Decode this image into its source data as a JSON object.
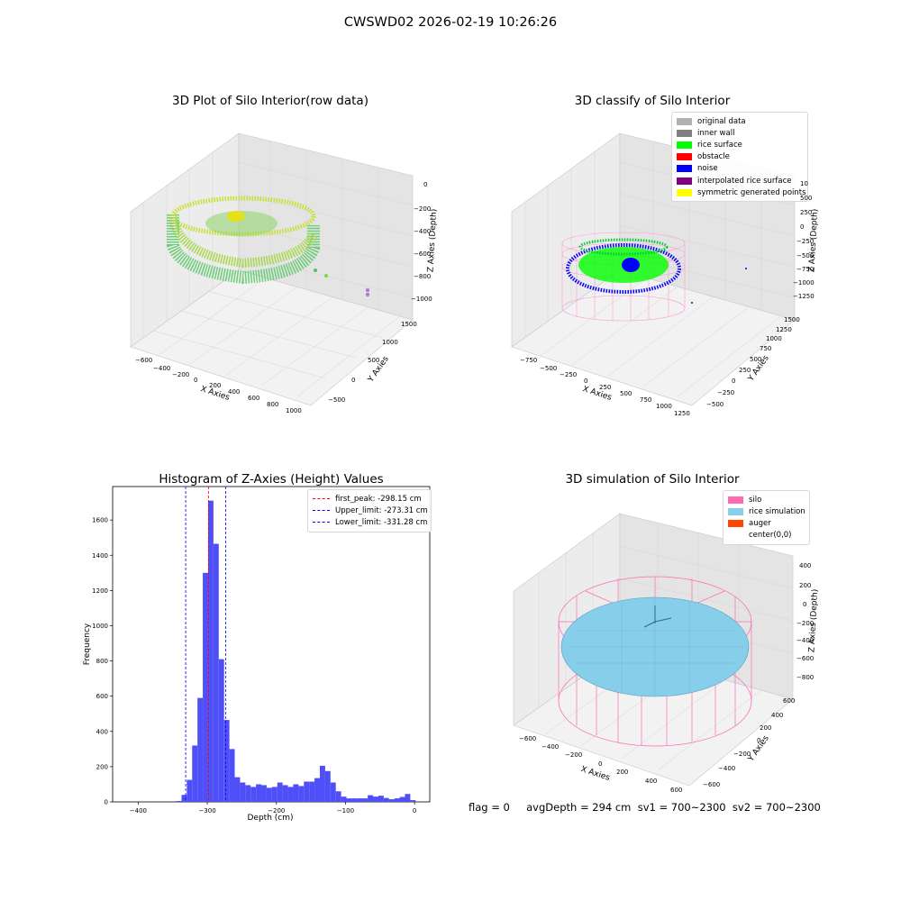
{
  "figure_title": "CWSWD02 2026-02-19 10:26:26",
  "panels": {
    "raw": {
      "title": "3D Plot of Silo Interior(row data)",
      "xlabel": "X Axies",
      "ylabel": "Y Axies",
      "zlabel": "Z Axies (Depth)",
      "xticks": [
        "−600",
        "−400",
        "−200",
        "0",
        "200",
        "400",
        "600",
        "800",
        "1000"
      ],
      "yticks": [
        "−500",
        "0",
        "500",
        "1000",
        "1500"
      ],
      "zticks": [
        "0",
        "−200",
        "−400",
        "−600",
        "−800",
        "−1000"
      ]
    },
    "classify": {
      "title": "3D classify of Silo Interior",
      "xlabel": "X Axies",
      "ylabel": "Y Axies",
      "zlabel": "Z Axies (Depth)",
      "xticks": [
        "−750",
        "−500",
        "−250",
        "0",
        "250",
        "500",
        "750",
        "1000",
        "1250"
      ],
      "yticks": [
        "−500",
        "−250",
        "0",
        "250",
        "500",
        "750",
        "1000",
        "1250",
        "1500"
      ],
      "zticks": [
        "500",
        "250",
        "0",
        "−250",
        "−500",
        "−750",
        "−1000",
        "−1250"
      ],
      "zticks_partial": [
        "10"
      ],
      "legend": [
        {
          "label": "original data",
          "color": "#b0b0b0"
        },
        {
          "label": "inner wall",
          "color": "#808080"
        },
        {
          "label": "rice surface",
          "color": "#00ff00"
        },
        {
          "label": "obstacle",
          "color": "#ff0000"
        },
        {
          "label": "noise",
          "color": "#0000ff"
        },
        {
          "label": "interpolated rice surface",
          "color": "#800080"
        },
        {
          "label": "symmetric generated points",
          "color": "#ffff00"
        }
      ]
    },
    "histogram": {
      "title": "Histogram of Z-Axies (Height) Values",
      "xlabel": "Depth (cm)",
      "ylabel": "Frequency",
      "legend": [
        {
          "label": "first_peak: -298.15 cm",
          "color": "#ff0000"
        },
        {
          "label": "Upper_limit: -273.31 cm",
          "color": "#0000ff"
        },
        {
          "label": "Lower_limit: -331.28 cm",
          "color": "#0000ff"
        }
      ]
    },
    "simulation": {
      "title": "3D simulation of Silo Interior",
      "xlabel": "X Axies",
      "ylabel": "Y Axies",
      "zlabel": "Z Axies (Depth)",
      "xticks": [
        "−600",
        "−400",
        "−200",
        "0",
        "200",
        "400",
        "600"
      ],
      "yticks": [
        "−600",
        "−400",
        "−200",
        "0",
        "200",
        "400",
        "600"
      ],
      "zticks": [
        "400",
        "200",
        "0",
        "−200",
        "−400",
        "−600",
        "−800"
      ],
      "legend": [
        {
          "label": "silo",
          "color": "#ff69b4"
        },
        {
          "label": "rice simulation",
          "color": "#87ceeb"
        },
        {
          "label": "auger",
          "color": "#ff4500"
        },
        {
          "label": "center(0,0)",
          "color": "#ffffff"
        }
      ]
    }
  },
  "status_text": "flag = 0     avgDepth = 294 cm  sv1 = 700~2300  sv2 = 700~2300",
  "chart_data": [
    {
      "type": "scatter",
      "title": "3D Plot of Silo Interior(row data)",
      "note": "3D point cloud; individual points not recoverable"
    },
    {
      "type": "scatter",
      "title": "3D classify of Silo Interior",
      "note": "3D classified point cloud; individual points not recoverable"
    },
    {
      "type": "bar",
      "title": "Histogram of Z-Axies (Height) Values",
      "xlabel": "Depth (cm)",
      "ylabel": "Frequency",
      "xlim": [
        -437,
        22
      ],
      "ylim": [
        0,
        1790
      ],
      "xticks": [
        -400,
        -300,
        -200,
        -100,
        0
      ],
      "yticks": [
        0,
        200,
        400,
        600,
        800,
        1000,
        1200,
        1400,
        1600
      ],
      "bin_width": 7.7,
      "bins_start": [
        -345,
        -337.3,
        -329.6,
        -321.9,
        -314.2,
        -306.5,
        -298.8,
        -291.1,
        -283.4,
        -275.7,
        -268,
        -260.3,
        -252.6,
        -244.9,
        -237.2,
        -229.5,
        -221.8,
        -214.1,
        -206.4,
        -198.7,
        -191,
        -183.3,
        -175.6,
        -167.9,
        -160.2,
        -152.5,
        -144.8,
        -137.1,
        -129.4,
        -121.7,
        -114,
        -106.3,
        -98.6,
        -90.9,
        -83.2,
        -75.5,
        -67.8,
        -60.1,
        -52.4,
        -44.7,
        -37,
        -29.3,
        -21.6,
        -13.9,
        -6.2
      ],
      "counts": [
        5,
        40,
        125,
        320,
        590,
        1300,
        1710,
        1465,
        810,
        465,
        300,
        140,
        110,
        95,
        85,
        100,
        95,
        80,
        85,
        110,
        95,
        85,
        100,
        90,
        115,
        115,
        135,
        205,
        175,
        110,
        60,
        30,
        20,
        20,
        20,
        20,
        38,
        30,
        35,
        22,
        15,
        20,
        28,
        45,
        10
      ],
      "series": [
        {
          "name": "first_peak: -298.15 cm",
          "x": -298.15
        },
        {
          "name": "Upper_limit: -273.31 cm",
          "x": -273.31
        },
        {
          "name": "Lower_limit: -331.28 cm",
          "x": -331.28
        }
      ]
    },
    {
      "type": "scatter",
      "title": "3D simulation of Silo Interior",
      "note": "3D surface simulation of rice level inside silo"
    }
  ]
}
